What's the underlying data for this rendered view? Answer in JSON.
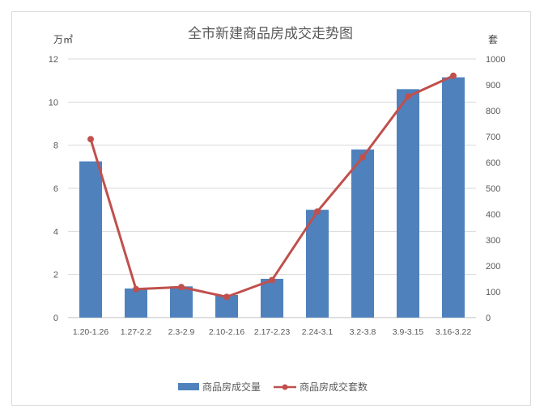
{
  "chart_data": {
    "type": "bar",
    "title": "全市新建商品房成交走势图",
    "categories": [
      "1.20-1.26",
      "1.27-2.2",
      "2.3-2.9",
      "2.10-2.16",
      "2.17-2.23",
      "2.24-3.1",
      "3.2-3.8",
      "3.9-3.15",
      "3.16-3.22"
    ],
    "left_axis": {
      "unit": "万㎡",
      "ylim": [
        0,
        12
      ],
      "ticks": [
        0,
        2,
        4,
        6,
        8,
        10,
        12
      ]
    },
    "right_axis": {
      "unit": "套",
      "ylim": [
        0,
        1000
      ],
      "ticks": [
        0,
        100,
        200,
        300,
        400,
        500,
        600,
        700,
        800,
        900,
        1000
      ]
    },
    "grid": true,
    "legend_position": "bottom",
    "series": [
      {
        "name": "商品房成交量",
        "type": "bar",
        "axis": "left",
        "color": "#4f81bd",
        "values": [
          7.25,
          1.35,
          1.45,
          1.05,
          1.8,
          5.0,
          7.8,
          10.6,
          11.15
        ]
      },
      {
        "name": "商品房成交套数",
        "type": "line",
        "axis": "right",
        "color": "#c0504d",
        "values": [
          690,
          110,
          118,
          80,
          145,
          410,
          620,
          855,
          935
        ]
      }
    ]
  }
}
